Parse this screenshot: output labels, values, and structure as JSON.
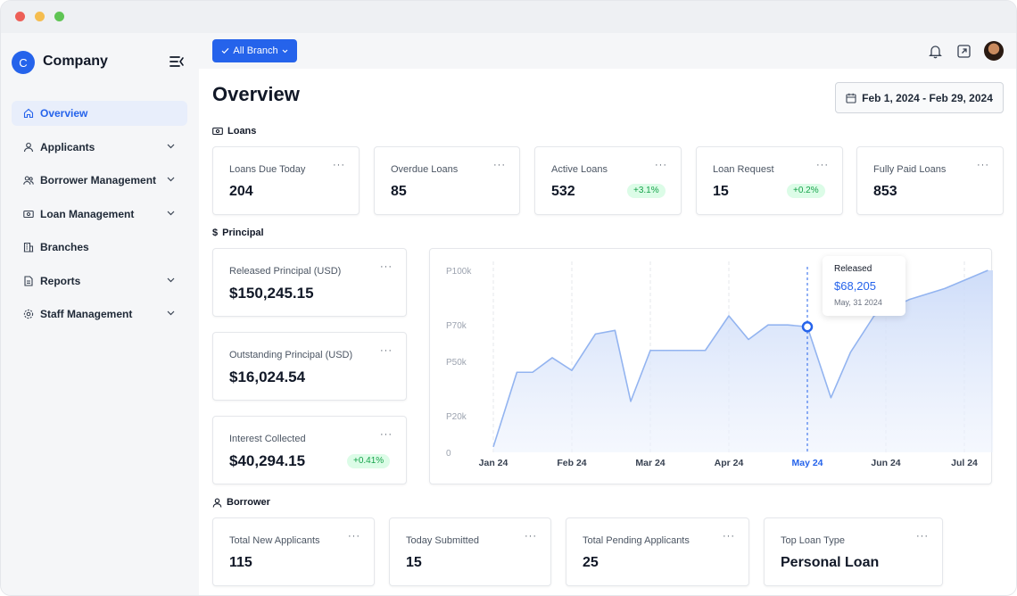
{
  "sidebar": {
    "logo_letter": "C",
    "company": "Company",
    "items": [
      {
        "label": "Overview",
        "icon": "home-icon",
        "active": true
      },
      {
        "label": "Applicants",
        "icon": "user-icon"
      },
      {
        "label": "Borrower Management",
        "icon": "users-icon"
      },
      {
        "label": "Loan Management",
        "icon": "banknote-icon"
      },
      {
        "label": "Branches",
        "icon": "building-icon"
      },
      {
        "label": "Reports",
        "icon": "file-icon"
      },
      {
        "label": "Staff Management",
        "icon": "gear-icon"
      }
    ]
  },
  "topbar": {
    "branch_label": "All Branch",
    "icons": [
      "bell-icon",
      "external-link-icon",
      "avatar"
    ]
  },
  "page": {
    "title": "Overview",
    "date_range": "Feb 1, 2024 - Feb 29, 2024"
  },
  "loans": {
    "section": "Loans",
    "cards": [
      {
        "label": "Loans Due Today",
        "value": "204",
        "badge": ""
      },
      {
        "label": "Overdue Loans",
        "value": "85",
        "badge": ""
      },
      {
        "label": "Active Loans",
        "value": "532",
        "badge": "+3.1%"
      },
      {
        "label": "Loan Request",
        "value": "15",
        "badge": "+0.2%"
      },
      {
        "label": "Fully Paid Loans",
        "value": "853",
        "badge": ""
      }
    ]
  },
  "principal": {
    "section": "Principal",
    "section_symbol": "$",
    "cards": [
      {
        "label": "Released Principal (USD)",
        "value": "$150,245.15",
        "badge": ""
      },
      {
        "label": "Outstanding Principal (USD)",
        "value": "$16,024.54",
        "badge": ""
      },
      {
        "label": "Interest Collected",
        "value": "$40,294.15",
        "badge": "+0.41%"
      }
    ]
  },
  "chart_data": {
    "type": "area",
    "x": [
      0,
      0.3,
      0.5,
      0.75,
      1.0,
      1.3,
      1.55,
      1.75,
      2.0,
      2.3,
      2.7,
      3.0,
      3.25,
      3.5,
      3.75,
      4.0,
      4.3,
      4.55,
      4.85,
      5.3,
      5.75,
      6.3
    ],
    "y": [
      3000,
      44000,
      44000,
      52000,
      45000,
      65000,
      67000,
      28000,
      56000,
      56000,
      56000,
      75000,
      62000,
      70000,
      70000,
      69000,
      30000,
      55000,
      75000,
      84000,
      90000,
      100000
    ],
    "categories": [
      "Jan 24",
      "Feb 24",
      "Mar 24",
      "Apr 24",
      "May 24",
      "Jun 24",
      "Jul 24"
    ],
    "y_ticks": [
      "P100k",
      "P70k",
      "P50k",
      "P20k",
      "0"
    ],
    "ylim": [
      0,
      100000
    ],
    "highlight": {
      "category": "May 24",
      "title": "Released",
      "value": "$68,205",
      "date": "May, 31 2024"
    },
    "grid": true,
    "accent": "#2563eb",
    "line_color": "#93b4f0"
  },
  "borrower": {
    "section": "Borrower",
    "cards": [
      {
        "label": "Total New Applicants",
        "value": "115"
      },
      {
        "label": "Today Submitted",
        "value": "15"
      },
      {
        "label": "Total Pending Applicants",
        "value": "25"
      },
      {
        "label": "Top Loan Type",
        "value": "Personal Loan"
      }
    ]
  },
  "more_glyph": "···"
}
